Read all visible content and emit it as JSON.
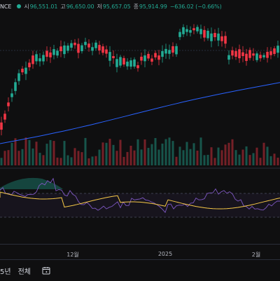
{
  "header": {
    "symbol_suffix": "NCE",
    "open_label": "시",
    "open_value": "96,551.01",
    "high_label": "고",
    "high_value": "96,650.00",
    "low_label": "저",
    "low_value": "95,657.05",
    "close_label": "종",
    "close_value": "95,914.99",
    "change": "−636.02 (−0.66%)",
    "status_color": "#22ab94"
  },
  "colors": {
    "up": "#22ab94",
    "down": "#f23645",
    "ma": "#2962ff",
    "rsi": "#7e57c2",
    "rsi_ma": "#f7c948"
  },
  "time_axis": {
    "ticks": [
      "12월",
      "2025",
      "2월"
    ]
  },
  "toolbar": {
    "range_5y": "5년",
    "range_all": "전체",
    "calendar_icon": "calendar-goto-icon"
  }
}
